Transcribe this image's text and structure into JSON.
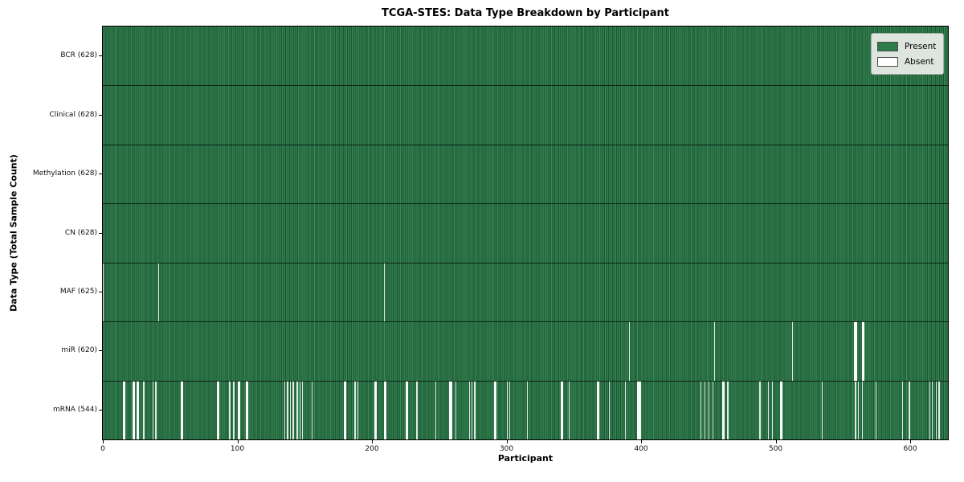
{
  "figure": {
    "title": "TCGA-STES: Data Type Breakdown by Participant"
  },
  "chart_data": {
    "type": "heatmap",
    "title": "TCGA-STES: Data Type Breakdown by Participant",
    "xlabel": "Participant",
    "ylabel": "Data Type (Total Sample Count)",
    "xlim": [
      0,
      628
    ],
    "x_ticks": [
      0,
      100,
      200,
      300,
      400,
      500,
      600
    ],
    "total_participants": 628,
    "grid": false,
    "legend_position": "upper-right",
    "legend": [
      {
        "label": "Present",
        "color": "#2e7b4a"
      },
      {
        "label": "Absent",
        "color": "#ffffff"
      }
    ],
    "colors": {
      "present": "#2e7b4a",
      "present_dark": "#1d5634",
      "present_light": "#3a8a59",
      "absent": "#fbfbfb",
      "row_divider": "#14301f",
      "axis": "#000000",
      "legend_bg": "#dde5de",
      "legend_border": "#a6aba6",
      "swatch_edge": "#4d4d4d"
    },
    "rows": [
      {
        "label": "BCR (628)",
        "data_type": "BCR",
        "present_count": 628,
        "absent_count": 0,
        "absent_participants": []
      },
      {
        "label": "Clinical (628)",
        "data_type": "Clinical",
        "present_count": 628,
        "absent_count": 0,
        "absent_participants": []
      },
      {
        "label": "Methylation (628)",
        "data_type": "Methylation",
        "present_count": 628,
        "absent_count": 0,
        "absent_participants": []
      },
      {
        "label": "CN (628)",
        "data_type": "CN",
        "present_count": 628,
        "absent_count": 0,
        "absent_participants": []
      },
      {
        "label": "MAF (625)",
        "data_type": "MAF",
        "present_count": 625,
        "absent_count": 3,
        "absent_participants": [
          0,
          41,
          209
        ]
      },
      {
        "label": "miR (620)",
        "data_type": "miR",
        "present_count": 620,
        "absent_count": 8,
        "absent_participants": [
          391,
          454,
          512,
          558,
          559,
          560,
          564,
          565
        ]
      },
      {
        "label": "mRNA (544)",
        "data_type": "mRNA",
        "present_count": 544,
        "absent_count": 84,
        "absent_participants": [
          15,
          16,
          22,
          23,
          25,
          26,
          30,
          37,
          39,
          58,
          59,
          85,
          86,
          94,
          97,
          100,
          101,
          106,
          107,
          135,
          137,
          139,
          141,
          144,
          146,
          148,
          155,
          179,
          180,
          187,
          189,
          202,
          203,
          209,
          210,
          225,
          226,
          233,
          247,
          257,
          258,
          259,
          262,
          272,
          274,
          276,
          291,
          292,
          300,
          302,
          315,
          340,
          341,
          346,
          367,
          368,
          376,
          388,
          397,
          398,
          399,
          444,
          447,
          450,
          453,
          460,
          461,
          464,
          488,
          494,
          497,
          503,
          504,
          534,
          559,
          561,
          564,
          574,
          594,
          599,
          614,
          616,
          619,
          621
        ]
      }
    ]
  }
}
